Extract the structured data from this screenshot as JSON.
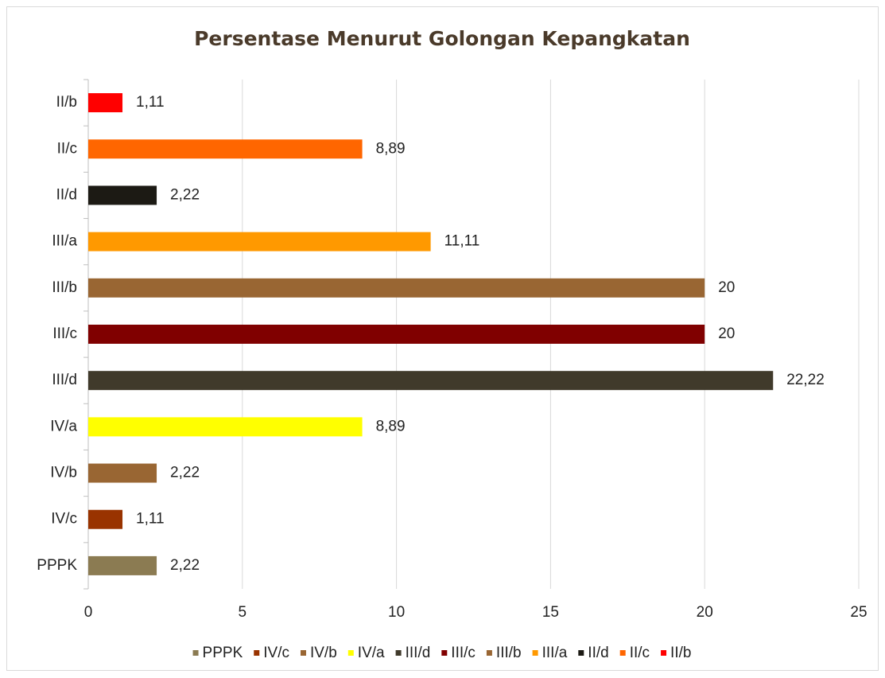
{
  "chart_data": {
    "type": "hbar",
    "title": "Persentase Menurut Golongan Kepangkatan",
    "categories": [
      "PPPK",
      "IV/c",
      "IV/b",
      "IV/a",
      "III/d",
      "III/c",
      "III/b",
      "III/a",
      "II/d",
      "II/c",
      "II/b"
    ],
    "values": [
      2.22,
      1.11,
      2.22,
      8.89,
      22.22,
      20,
      20,
      11.11,
      2.22,
      8.89,
      1.11
    ],
    "value_labels": [
      "2,22",
      "1,11",
      "2,22",
      "8,89",
      "22,22",
      "20",
      "20",
      "11,11",
      "2,22",
      "8,89",
      "1,11"
    ],
    "colors": [
      "#8b7b52",
      "#993300",
      "#996633",
      "#ffff00",
      "#403a2b",
      "#800000",
      "#996633",
      "#ff9900",
      "#1c1a14",
      "#ff6600",
      "#ff0000"
    ],
    "xlim": [
      0,
      25
    ],
    "xticks": [
      0,
      5,
      10,
      15,
      20,
      25
    ],
    "grid": true,
    "legend": "bottom"
  }
}
